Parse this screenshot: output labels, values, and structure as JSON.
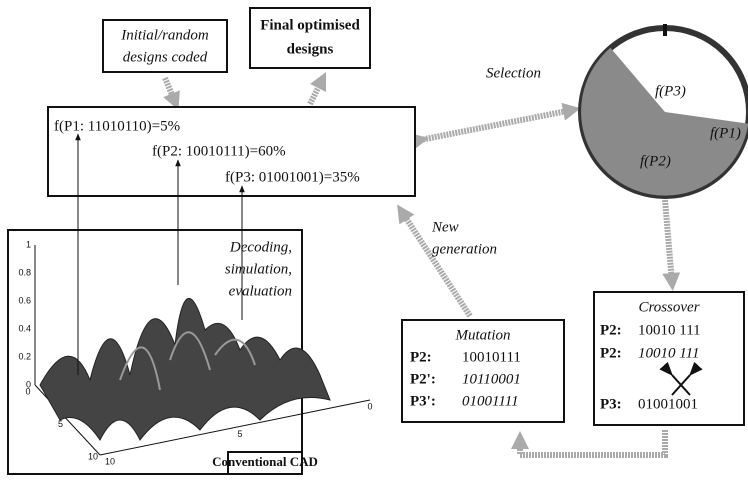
{
  "labels": {
    "initial": [
      "Initial/random",
      "designs coded"
    ],
    "final": [
      "Final optimised",
      "designs"
    ],
    "selection": "Selection",
    "new_generation": [
      "New",
      "generation"
    ],
    "decoding": [
      "Decoding,",
      "simulation,",
      "evaluation"
    ],
    "cad": "Conventional CAD"
  },
  "fitness": [
    "f(P1: 11010110)=5%",
    "f(P2: 10010111)=60%",
    "f(P3: 01001001)=35%"
  ],
  "pie": [
    "f(P3)",
    "f(P1)",
    "f(P2)"
  ],
  "plot": {
    "zticks": [
      1,
      0.8,
      0.6,
      0.4,
      0.2,
      0
    ],
    "xticks": [
      0,
      5,
      10
    ],
    "yticks": [
      10,
      5,
      0
    ]
  },
  "mutation": {
    "title": "Mutation",
    "rows": [
      [
        "P2:",
        "10010111"
      ],
      [
        "P2':",
        "10110001"
      ],
      [
        "P3':",
        "01001111"
      ]
    ]
  },
  "crossover": {
    "title": "Crossover",
    "rows": [
      [
        "P2:",
        "10010 111"
      ],
      [
        "P2:",
        "10010 111"
      ],
      [
        "P3:",
        "01001001"
      ]
    ]
  }
}
